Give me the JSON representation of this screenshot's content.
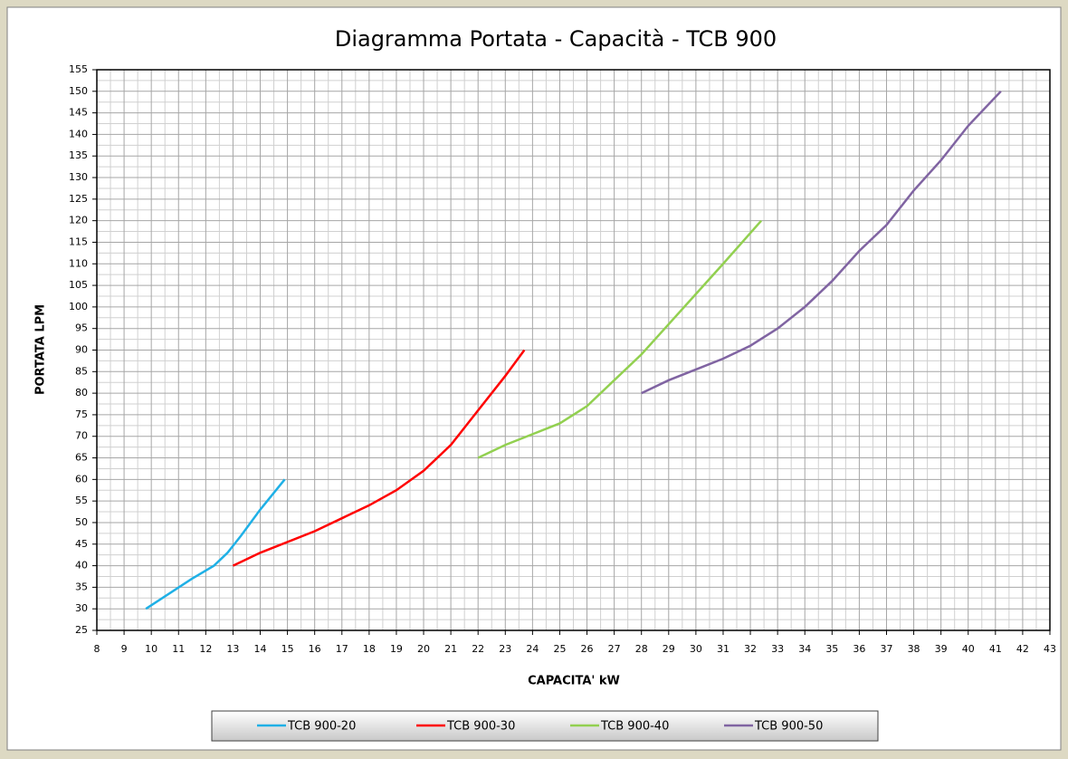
{
  "chart_data": {
    "type": "line",
    "title": "Diagramma Portata - Capacità - TCB 900",
    "x_label": "CAPACITA' kW",
    "y_label": "PORTATA LPM",
    "xlim": [
      8,
      43
    ],
    "ylim": [
      25,
      155
    ],
    "xticks": [
      8,
      9,
      10,
      11,
      12,
      13,
      14,
      15,
      16,
      17,
      18,
      19,
      20,
      21,
      22,
      23,
      24,
      25,
      26,
      27,
      28,
      29,
      30,
      31,
      32,
      33,
      34,
      35,
      36,
      37,
      38,
      39,
      40,
      41,
      42,
      43
    ],
    "yticks": [
      25,
      30,
      35,
      40,
      45,
      50,
      55,
      60,
      65,
      70,
      75,
      80,
      85,
      90,
      95,
      100,
      105,
      110,
      115,
      120,
      125,
      130,
      135,
      140,
      145,
      150,
      155
    ],
    "grid": true,
    "minor_grid": true,
    "legend": "bottom",
    "series": [
      {
        "name": "TCB 900-20",
        "color": "#1fb0e6",
        "x": [
          9.8,
          11.5,
          12.3,
          12.8,
          13.3,
          14.0,
          14.9
        ],
        "values": [
          30,
          37,
          40,
          43,
          47,
          53,
          60
        ]
      },
      {
        "name": "TCB 900-30",
        "color": "#ff0000",
        "x": [
          13,
          14,
          16,
          18,
          19,
          20,
          21,
          22,
          23,
          23.7
        ],
        "values": [
          40,
          43,
          48,
          54,
          57.5,
          62,
          68,
          76,
          84,
          90
        ]
      },
      {
        "name": "TCB 900-40",
        "color": "#92d050",
        "x": [
          22,
          23,
          24,
          25,
          26,
          27,
          28,
          29,
          30,
          31,
          32.4
        ],
        "values": [
          65,
          68,
          70.5,
          73,
          77,
          83,
          89,
          96,
          103,
          110,
          120
        ]
      },
      {
        "name": "TCB 900-50",
        "color": "#8064a2",
        "x": [
          28,
          29,
          30,
          31,
          32,
          33,
          34,
          35,
          36,
          37,
          38,
          39,
          40,
          41.2
        ],
        "values": [
          80,
          83,
          85.5,
          88,
          91,
          95,
          100,
          106,
          113,
          119,
          127,
          134,
          142,
          150
        ]
      }
    ]
  }
}
